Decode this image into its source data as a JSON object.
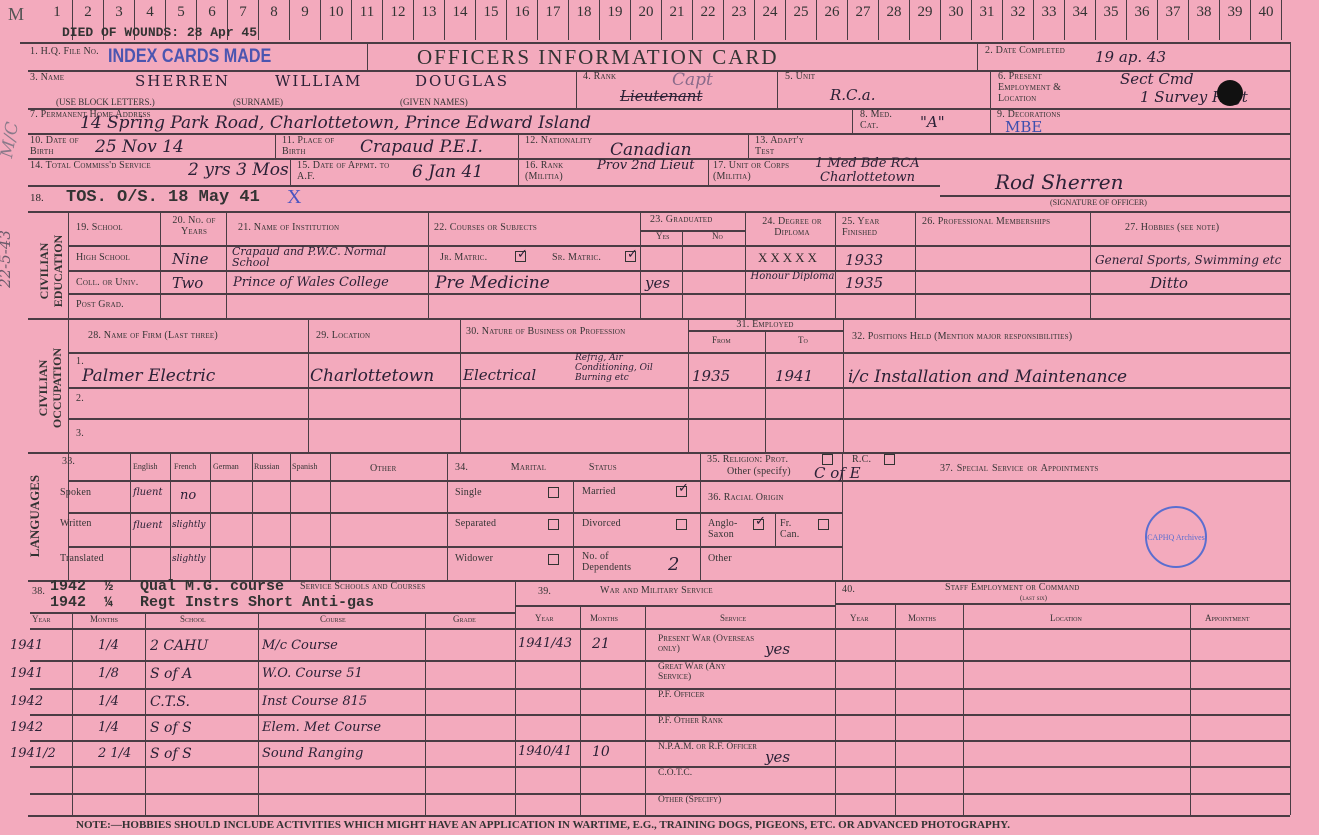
{
  "ruler": {
    "corner": "M",
    "numbers": [
      "1",
      "2",
      "3",
      "4",
      "5",
      "6",
      "7",
      "8",
      "9",
      "10",
      "11",
      "12",
      "13",
      "14",
      "15",
      "16",
      "17",
      "18",
      "19",
      "20",
      "21",
      "22",
      "23",
      "24",
      "25",
      "26",
      "27",
      "28",
      "29",
      "30",
      "31",
      "32",
      "33",
      "34",
      "35",
      "36",
      "37",
      "38",
      "39",
      "40"
    ],
    "died_note": "DIED OF WOUNDS: 28 Apr 45"
  },
  "header": {
    "hq_label": "1. H.Q. File No.",
    "hq_stamp": "INDEX CARDS MADE",
    "title": "OFFICERS INFORMATION CARD",
    "date_label": "2. Date Completed",
    "date_value": "19 ap. 43"
  },
  "personal": {
    "name_label": "3. Name",
    "surname": "SHERREN",
    "given1": "WILLIAM",
    "given2": "DOUGLAS",
    "block_note": "(USE BLOCK LETTERS.)",
    "surname_note": "(SURNAME)",
    "given_note": "(GIVEN NAMES)",
    "rank_label": "4. Rank",
    "rank_value": "Lieutenant",
    "rank_correction": "Capt",
    "unit_label": "5. Unit",
    "unit_value": "R.C.a.",
    "employment_label": "6. Present Employment & Location",
    "employment_value_1": "Sect Cmd",
    "employment_value_2": "1 Survey Regt",
    "address_label": "7. Permanent Home Address",
    "address_value": "14 Spring Park Road, Charlottetown, Prince Edward Island",
    "med_label": "8. Med. Cat.",
    "med_value": "\"A\"",
    "decorations_label": "9. Decorations",
    "decorations_value": "MBE",
    "dob_label": "10. Date of Birth",
    "dob_value": "25 Nov 14",
    "pob_label": "11. Place of Birth",
    "pob_value": "Crapaud P.E.I.",
    "nationality_label": "12. Nationality",
    "nationality_value": "Canadian",
    "adapt_label": "13. Adapt'y Test",
    "service_label": "14. Total Commiss'd Service",
    "service_value": "2 yrs 3 Mos",
    "appmt_label": "15. Date of Appmt. to A.F.",
    "appmt_value": "6 Jan 41",
    "militia_rank_label": "16. Rank (Militia)",
    "militia_rank_value": "Prov 2nd Lieut",
    "militia_unit_label": "17. Unit or Corps (Militia)",
    "militia_unit_value_1": "1 Med Bde RCA",
    "militia_unit_value_2": "Charlottetown",
    "signature": "Rod Sherren",
    "signature_label": "(SIGNATURE OF OFFICER)",
    "tos_num": "18.",
    "tos_value": "TOS. O/S. 18 May 41",
    "tos_mark": "X",
    "margin_note_1": "M/C",
    "margin_note_2": "22-5-43"
  },
  "education": {
    "side_label": "CIVILIAN EDUCATION",
    "headers": {
      "school": "19. School",
      "years": "20. No. of Years",
      "institution": "21. Name of Institution",
      "courses": "22. Courses or Subjects",
      "graduated": "23. Graduated",
      "yes": "Yes",
      "no": "No",
      "degree": "24. Degree or Diploma",
      "year": "25. Year Finished",
      "memberships": "26. Professional Memberships",
      "hobbies": "27. Hobbies (see note)"
    },
    "rows": [
      {
        "school": "High School",
        "years": "Nine",
        "institution": "Crapaud and P.W.C. Normal School",
        "jr": "Jr. Matric.",
        "sr": "Sr. Matric.",
        "degree": "XXXXX",
        "year": "1933",
        "hobbies": "General Sports, Swimming etc"
      },
      {
        "school": "Coll. or Univ.",
        "years": "Two",
        "institution": "Prince of Wales College",
        "courses": "Pre Medicine",
        "graduated_yes": "yes",
        "degree": "Honour Diploma",
        "year": "1935",
        "hobbies": "Ditto"
      },
      {
        "school": "Post Grad."
      }
    ]
  },
  "occupation": {
    "side_label": "CIVILIAN OCCUPATION",
    "headers": {
      "firm": "28. Name of Firm (Last three)",
      "location": "29. Location",
      "nature": "30. Nature of Business or Profession",
      "employed": "31. Employed",
      "from": "From",
      "to": "To",
      "positions": "32. Positions Held (Mention major responsibilities)"
    },
    "rows": [
      {
        "num": "1.",
        "firm": "Palmer Electric",
        "location": "Charlottetown",
        "nature": "Electrical",
        "nature_detail": "Refrig, Air Conditioning, Oil Burning etc",
        "from": "1935",
        "to": "1941",
        "positions": "i/c Installation and Maintenance"
      },
      {
        "num": "2."
      },
      {
        "num": "3."
      }
    ]
  },
  "languages": {
    "side_label": "LANGUAGES",
    "num": "33.",
    "columns": [
      "English",
      "French",
      "German",
      "Russian",
      "Spanish",
      "Other"
    ],
    "rows": [
      {
        "label": "Spoken",
        "english": "fluent",
        "french": "no"
      },
      {
        "label": "Written",
        "english": "fluent",
        "french": "slightly"
      },
      {
        "label": "Translated",
        "french": "slightly"
      }
    ]
  },
  "marital": {
    "title": "34. Marital Status",
    "single": "Single",
    "married": "Married",
    "separated": "Separated",
    "divorced": "Divorced",
    "widower": "Widower",
    "dependents_label": "No. of Dependents",
    "dependents_value": "2",
    "checked": "Married"
  },
  "religion": {
    "label": "35. Religion: Prot.",
    "rc": "R.C.",
    "other": "Other (specify)",
    "value": "C of E"
  },
  "racial": {
    "title": "36. Racial Origin",
    "anglo": "Anglo-Saxon",
    "fr": "Fr. Can.",
    "other": "Other",
    "checked": "Anglo-Saxon"
  },
  "special": {
    "title": "37. Special Service or Appointments",
    "stamp": "CAPHQ Archives"
  },
  "schools": {
    "num": "38.",
    "title": "Service Schools and Courses",
    "typed_1": "1942  ½   Qual M.G. course",
    "typed_2": "1942  ¼   Regt Instrs Short Anti-gas",
    "headers": [
      "Year",
      "Months",
      "School",
      "Course",
      "Grade"
    ],
    "rows": [
      {
        "year": "1941",
        "months": "1/4",
        "school": "2 CAHU",
        "course": "M/c Course"
      },
      {
        "year": "1941",
        "months": "1/8",
        "school": "S of A",
        "course": "W.O. Course 51"
      },
      {
        "year": "1942",
        "months": "1/4",
        "school": "C.T.S.",
        "course": "Inst Course 815"
      },
      {
        "year": "1942",
        "months": "1/4",
        "school": "S of S",
        "course": "Elem. Met Course"
      },
      {
        "year": "1941/2",
        "months": "2 1/4",
        "school": "S of S",
        "course": "Sound Ranging"
      }
    ]
  },
  "war_service": {
    "num": "39.",
    "title": "War and Military Service",
    "headers": [
      "Year",
      "Months",
      "Service"
    ],
    "rows": [
      {
        "year": "1941/43",
        "months": "21",
        "service": "Present War (Overseas only)",
        "value": "yes"
      },
      {
        "service": "Great War (Any Service)"
      },
      {
        "service": "P.F. Officer"
      },
      {
        "service": "P.F. Other Rank"
      },
      {
        "year": "1940/41",
        "months": "10",
        "service": "N.P.A.M. or R.F. Officer",
        "value": "yes"
      },
      {
        "service": "C.O.T.C."
      },
      {
        "service": "Other (Specify)"
      }
    ]
  },
  "staff": {
    "num": "40.",
    "title": "Staff Employment or Command",
    "subtitle": "(last six)",
    "headers": [
      "Year",
      "Months",
      "Location",
      "Appointment"
    ]
  },
  "note": "NOTE:—HOBBIES SHOULD INCLUDE ACTIVITIES WHICH MIGHT HAVE AN APPLICATION IN WARTIME, E.G., TRAINING DOGS, PIGEONS, ETC. OR ADVANCED PHOTOGRAPHY."
}
